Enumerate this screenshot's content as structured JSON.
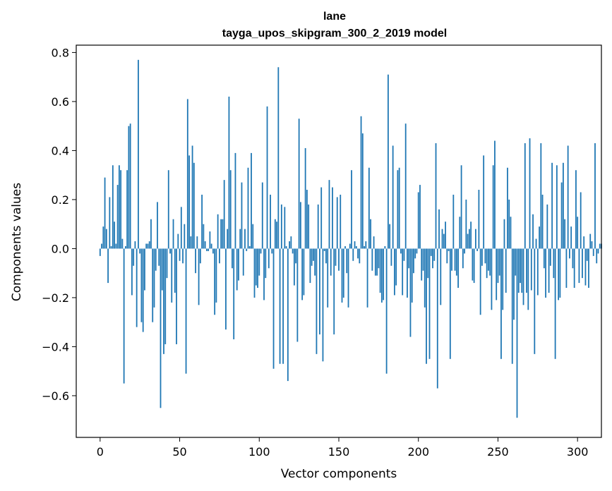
{
  "chart_data": {
    "type": "bar",
    "title_line1": "lane",
    "title_line2": "tayga_upos_skipgram_300_2_2019 model",
    "xlabel": "Vector components",
    "ylabel": "Components values",
    "xlim": [
      -15,
      315
    ],
    "ylim": [
      -0.77,
      0.83
    ],
    "xticks": [
      0,
      50,
      100,
      150,
      200,
      250,
      300
    ],
    "xtick_labels": [
      "0",
      "50",
      "100",
      "150",
      "200",
      "250",
      "300"
    ],
    "yticks": [
      -0.6,
      -0.4,
      -0.2,
      0.0,
      0.2,
      0.4,
      0.6,
      0.8
    ],
    "ytick_labels": [
      "−0.6",
      "−0.4",
      "−0.2",
      "0.0",
      "0.2",
      "0.4",
      "0.6",
      "0.8"
    ],
    "bar_color": "#1f77b4",
    "grid": false,
    "values": [
      -0.03,
      0.02,
      0.09,
      0.29,
      0.08,
      -0.14,
      0.21,
      0.01,
      0.34,
      0.11,
      0.02,
      0.26,
      0.34,
      0.32,
      0.04,
      -0.55,
      0.01,
      0.32,
      0.5,
      0.51,
      -0.19,
      -0.07,
      0.03,
      -0.32,
      0.77,
      -0.02,
      -0.3,
      -0.34,
      -0.17,
      0.02,
      0.02,
      0.03,
      0.12,
      -0.3,
      -0.24,
      -0.09,
      0.19,
      -0.07,
      -0.65,
      -0.17,
      -0.43,
      -0.39,
      -0.12,
      0.32,
      -0.02,
      -0.22,
      0.12,
      -0.18,
      -0.39,
      0.06,
      -0.05,
      0.17,
      -0.06,
      0.1,
      -0.51,
      0.61,
      0.38,
      0.05,
      0.42,
      0.35,
      -0.1,
      0.05,
      -0.23,
      -0.06,
      0.22,
      0.1,
      0.03,
      -0.01,
      -0.01,
      0.07,
      0.02,
      -0.02,
      -0.27,
      -0.22,
      0.14,
      -0.06,
      0.12,
      0.12,
      0.28,
      -0.33,
      0.08,
      0.62,
      0.32,
      -0.08,
      -0.37,
      0.39,
      -0.17,
      -0.13,
      0.08,
      0.27,
      -0.11,
      0.08,
      -0.01,
      0.33,
      0.01,
      0.39,
      0.1,
      -0.2,
      -0.15,
      -0.16,
      -0.11,
      -0.02,
      0.27,
      -0.21,
      -0.12,
      0.58,
      -0.08,
      0.22,
      -0.02,
      -0.49,
      0.12,
      0.11,
      0.74,
      -0.47,
      0.18,
      -0.47,
      0.17,
      0.01,
      -0.54,
      0.03,
      0.05,
      -0.02,
      -0.15,
      -0.06,
      -0.38,
      0.53,
      0.19,
      -0.21,
      -0.19,
      0.41,
      0.24,
      0.18,
      -0.14,
      -0.07,
      -0.05,
      -0.11,
      -0.43,
      0.18,
      -0.35,
      0.25,
      -0.46,
      -0.01,
      -0.06,
      -0.24,
      0.28,
      -0.11,
      0.25,
      -0.35,
      -0.07,
      0.21,
      -0.09,
      0.22,
      -0.22,
      -0.2,
      0.01,
      -0.1,
      -0.24,
      0.02,
      0.32,
      -0.05,
      0.03,
      0.01,
      -0.04,
      -0.06,
      0.54,
      0.47,
      0.01,
      0.03,
      -0.24,
      0.33,
      0.12,
      -0.09,
      0.05,
      -0.11,
      -0.11,
      -0.08,
      -0.18,
      -0.22,
      -0.21,
      0.01,
      -0.51,
      0.71,
      0.1,
      -0.07,
      0.42,
      -0.19,
      -0.15,
      0.32,
      0.33,
      -0.02,
      -0.19,
      -0.05,
      0.51,
      -0.2,
      -0.08,
      -0.36,
      -0.22,
      -0.1,
      -0.04,
      -0.02,
      0.23,
      0.26,
      -0.13,
      -0.09,
      -0.24,
      -0.47,
      -0.12,
      -0.45,
      -0.03,
      -0.08,
      -0.05,
      0.43,
      -0.57,
      0.16,
      -0.23,
      0.08,
      0.06,
      0.11,
      -0.06,
      -0.01,
      -0.45,
      -0.09,
      0.22,
      -0.09,
      -0.11,
      -0.16,
      0.13,
      0.34,
      -0.08,
      -0.02,
      0.2,
      0.06,
      0.08,
      0.11,
      -0.13,
      -0.14,
      0.08,
      -0.01,
      0.24,
      -0.27,
      -0.07,
      0.38,
      -0.06,
      -0.12,
      -0.09,
      -0.11,
      -0.25,
      0.34,
      0.44,
      -0.21,
      -0.14,
      -0.11,
      -0.45,
      -0.25,
      0.12,
      -0.18,
      0.33,
      0.2,
      0.13,
      -0.47,
      -0.29,
      -0.11,
      -0.69,
      -0.18,
      -0.14,
      -0.18,
      -0.23,
      0.43,
      -0.18,
      -0.25,
      0.45,
      -0.17,
      0.14,
      -0.43,
      0.04,
      -0.19,
      0.09,
      0.43,
      0.22,
      -0.08,
      -0.2,
      0.18,
      -0.18,
      -0.07,
      0.35,
      -0.12,
      -0.45,
      0.34,
      -0.21,
      -0.2,
      0.27,
      0.35,
      0.12,
      -0.16,
      0.42,
      -0.04,
      0.09,
      -0.08,
      -0.16,
      0.32,
      0.13,
      -0.14,
      0.23,
      -0.12,
      0.05,
      -0.15,
      -0.05,
      -0.16,
      0.06,
      0.03,
      -0.03,
      0.43,
      -0.06,
      -0.02,
      0.02,
      0.02
    ]
  }
}
